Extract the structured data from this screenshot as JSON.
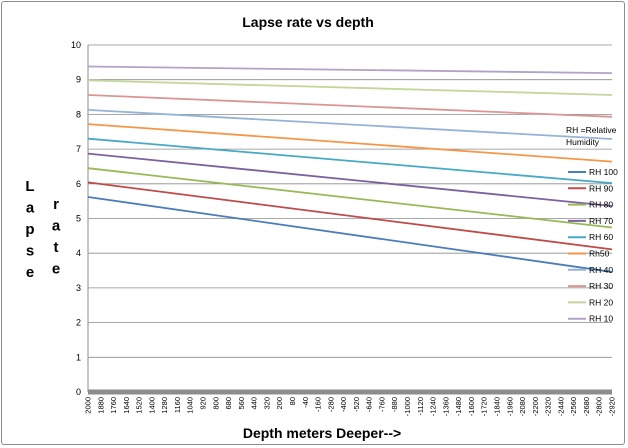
{
  "chart_data": {
    "type": "line",
    "title": "Lapse rate vs depth",
    "xlabel": "Depth meters Deeper-->",
    "ylabel_left": [
      "L",
      "a",
      "p",
      "s",
      "e"
    ],
    "ylabel_right": [
      "r",
      "a",
      "t",
      "e"
    ],
    "legend_note": [
      "RH =Relative",
      "Humidity"
    ],
    "ylim": [
      0,
      10
    ],
    "yticks": [
      "0",
      "1",
      "2",
      "3",
      "4",
      "5",
      "6",
      "7",
      "8",
      "9",
      "10"
    ],
    "x_start": 2000,
    "x_end": -2920,
    "xticks": [
      "2000",
      "1880",
      "1760",
      "1640",
      "1520",
      "1400",
      "1280",
      "1160",
      "1040",
      "920",
      "800",
      "680",
      "560",
      "440",
      "320",
      "200",
      "80",
      "-40",
      "-160",
      "-280",
      "-400",
      "-520",
      "-640",
      "-760",
      "-880",
      "-1000",
      "-1120",
      "-1240",
      "-1360",
      "-1480",
      "-1600",
      "-1720",
      "-1840",
      "-1960",
      "-2080",
      "-2200",
      "-2320",
      "-2440",
      "-2560",
      "-2680",
      "-2800",
      "-2920"
    ],
    "grid": true,
    "legend_position": "right",
    "series": [
      {
        "name": "RH 100",
        "color": "#4a7ebb",
        "values": [
          5.62,
          3.46
        ]
      },
      {
        "name": "RH 90",
        "color": "#be4b48",
        "values": [
          6.04,
          4.11
        ]
      },
      {
        "name": "RH 80",
        "color": "#98b954",
        "values": [
          6.45,
          4.74
        ]
      },
      {
        "name": "RH 70",
        "color": "#7d60a0",
        "values": [
          6.87,
          5.36
        ]
      },
      {
        "name": "RH 60",
        "color": "#46aac5",
        "values": [
          7.3,
          6.02
        ]
      },
      {
        "name": "Rh50",
        "color": "#f79646",
        "values": [
          7.72,
          6.64
        ]
      },
      {
        "name": "RH 40",
        "color": "#95b3d7",
        "values": [
          8.13,
          7.29
        ]
      },
      {
        "name": "RH 30",
        "color": "#d99694",
        "values": [
          8.56,
          7.93
        ]
      },
      {
        "name": "RH 20",
        "color": "#c3d69b",
        "values": [
          8.98,
          8.56
        ]
      },
      {
        "name": "RH 10",
        "color": "#b3a2c7",
        "values": [
          9.38,
          9.19
        ]
      }
    ]
  }
}
